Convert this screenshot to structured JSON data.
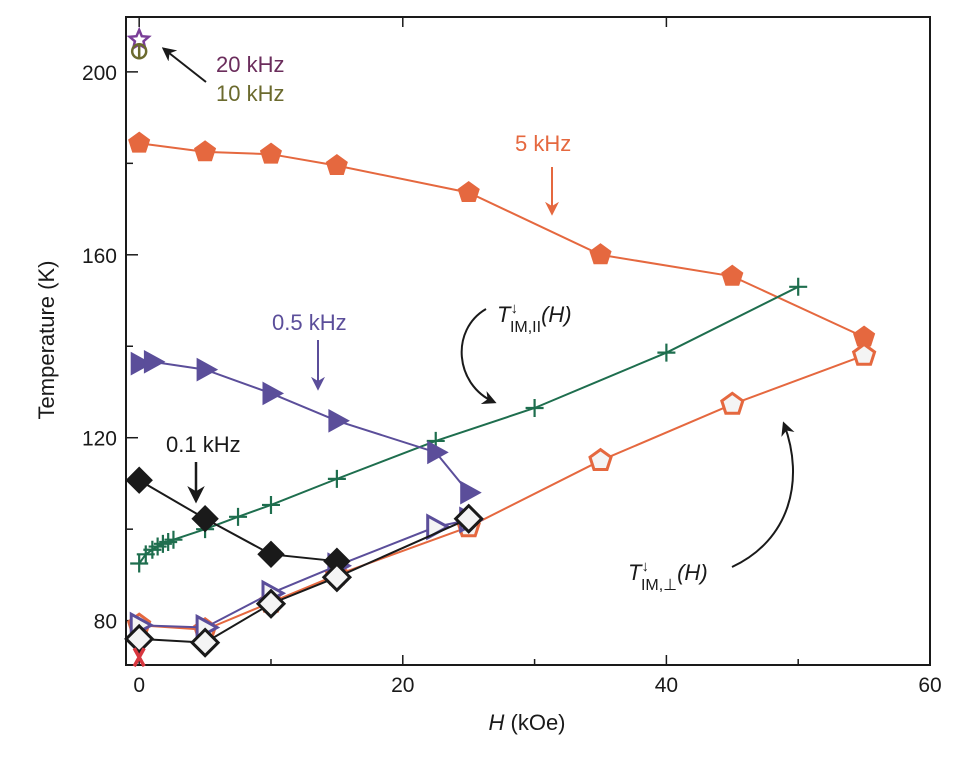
{
  "chart_data": {
    "type": "scatter",
    "xlabel_var": "H",
    "xlabel_unit": "(kOe)",
    "ylabel": "Temperature (K)",
    "xlim": [
      -1,
      60
    ],
    "ylim": [
      70.3,
      212
    ],
    "xticks": [
      0,
      20,
      40,
      60
    ],
    "xticks_minor": [
      10,
      30,
      50
    ],
    "yticks": [
      80,
      120,
      160,
      200
    ],
    "yticks_minor": [
      100,
      140,
      180
    ],
    "grid": false,
    "series": [
      {
        "name": "5 kHz (filled)",
        "color": "#e5683f",
        "marker": "pentagon-filled",
        "line": true,
        "x": [
          0,
          5,
          10,
          15,
          25,
          35,
          45,
          55
        ],
        "y": [
          184.4,
          182.5,
          182,
          179.5,
          173.6,
          160,
          155.3,
          142
        ]
      },
      {
        "name": "5 kHz (open)",
        "color": "#e5683f",
        "marker": "pentagon-open",
        "line": true,
        "x": [
          0,
          5,
          10,
          15,
          25,
          35,
          45,
          55
        ],
        "y": [
          79,
          78,
          84,
          90,
          100.5,
          115,
          127.3,
          138
        ]
      },
      {
        "name": "T_IM,par(H)",
        "color": "#1e6e4e",
        "marker": "cross",
        "line": true,
        "x": [
          0,
          0.5,
          1,
          1.4,
          1.8,
          2.2,
          2.6,
          5,
          7.5,
          10,
          15,
          22.5,
          30,
          40,
          50
        ],
        "y": [
          92.5,
          94.5,
          95.5,
          96.2,
          96.8,
          97.2,
          97.7,
          100,
          102.7,
          105.3,
          111,
          119.3,
          126.5,
          138.6,
          153
        ]
      },
      {
        "name": "0.5 kHz (filled)",
        "color": "#5b4e9a",
        "marker": "triangle-filled",
        "line": true,
        "x": [
          0,
          1,
          5,
          10,
          15,
          22.5,
          25
        ],
        "y": [
          136.2,
          136.6,
          134.9,
          129.7,
          123.7,
          116.8,
          108
        ]
      },
      {
        "name": "0.5 kHz (open)",
        "color": "#5b4e9a",
        "marker": "triangle-open",
        "line": true,
        "x": [
          0,
          5,
          10,
          15,
          22.5,
          25
        ],
        "y": [
          79,
          78.5,
          86,
          92,
          100.5,
          102
        ]
      },
      {
        "name": "0.1 kHz (filled)",
        "color": "#1a1a1a",
        "marker": "diamond-filled",
        "line": true,
        "x": [
          0,
          5,
          10,
          15
        ],
        "y": [
          110.7,
          102.3,
          94.5,
          93
        ]
      },
      {
        "name": "0.1 kHz (open)",
        "color": "#1a1a1a",
        "marker": "diamond-open",
        "line": true,
        "x": [
          0,
          5,
          10,
          15,
          25
        ],
        "y": [
          76,
          75.2,
          83.7,
          89.5,
          102.3
        ]
      },
      {
        "name": "20 kHz",
        "color": "#7a3e98",
        "marker": "star-open",
        "line": false,
        "x": [
          0
        ],
        "y": [
          207
        ]
      },
      {
        "name": "10 kHz",
        "color": "#6b6a2e",
        "marker": "circle-cross",
        "line": false,
        "x": [
          0
        ],
        "y": [
          204.5
        ]
      },
      {
        "name": "X point",
        "color": "#d8373f",
        "marker": "x",
        "line": false,
        "x": [
          0
        ],
        "y": [
          72
        ]
      }
    ],
    "annotations": {
      "khz20": {
        "text": "20 kHz",
        "color": "#6b2d5c"
      },
      "khz10": {
        "text": "10 kHz",
        "color": "#6b6a2e"
      },
      "khz5": {
        "text": "5 kHz",
        "color": "#e5683f"
      },
      "khz05": {
        "text": "0.5 kHz",
        "color": "#5b4e9a"
      },
      "khz01": {
        "text": "0.1 kHz",
        "color": "#1a1a1a"
      },
      "t_par": {
        "T": "T",
        "sup": "↓",
        "sub": "IM,II",
        "arg": "(H)"
      },
      "t_perp": {
        "T": "T",
        "sup": "↓",
        "sub": "IM,⊥",
        "arg": "(H)"
      }
    }
  }
}
